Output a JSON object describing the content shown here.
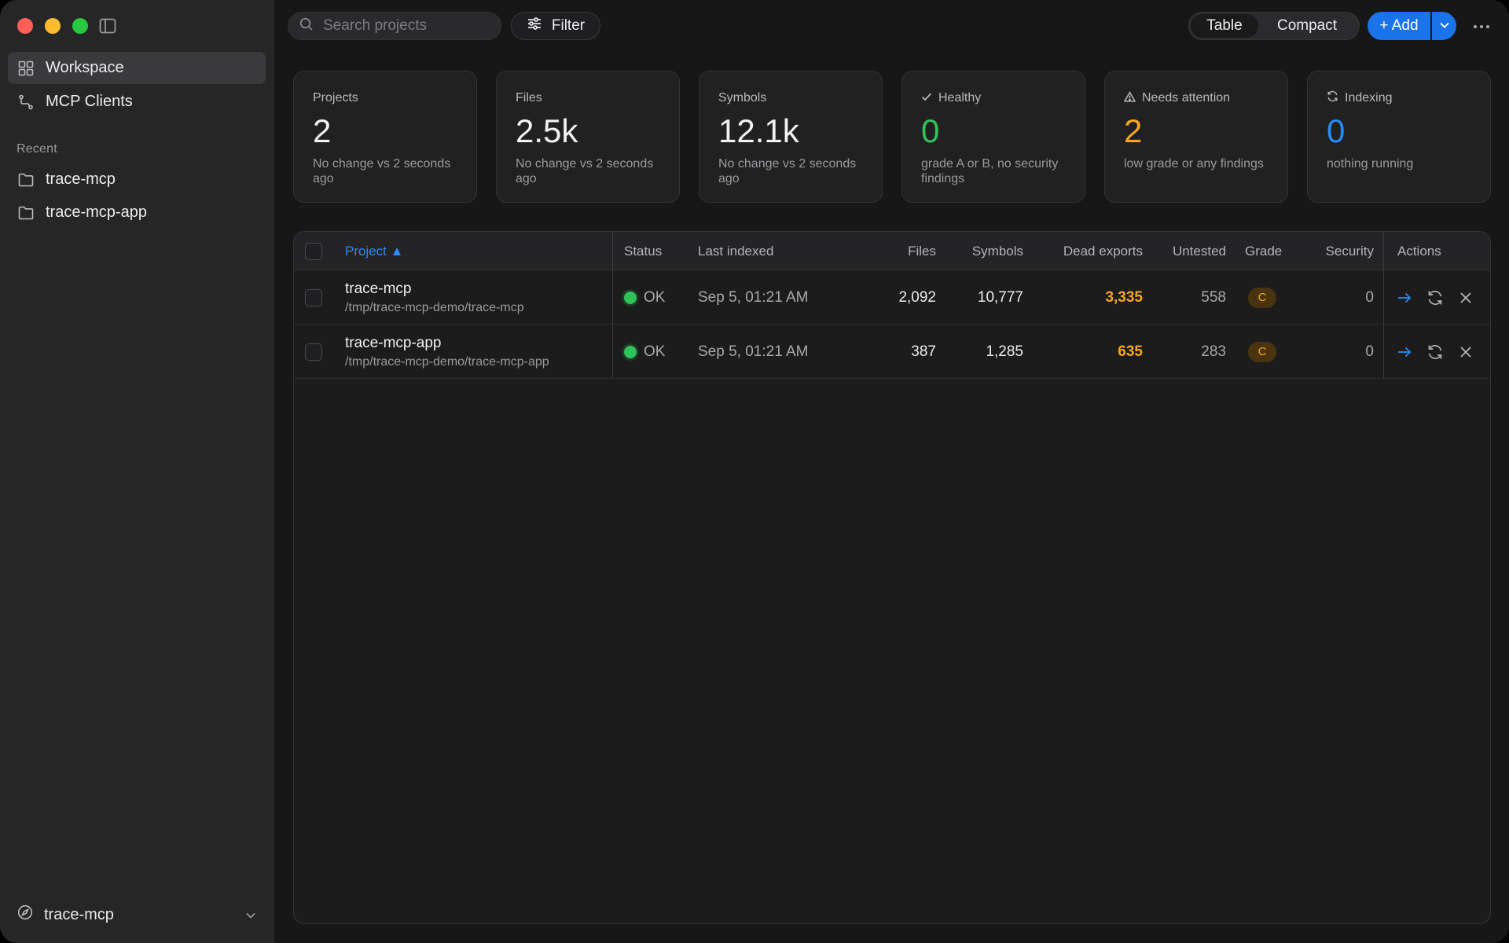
{
  "sidebar": {
    "nav": [
      {
        "label": "Workspace",
        "icon": "grid-icon"
      },
      {
        "label": "MCP Clients",
        "icon": "route-icon"
      }
    ],
    "recent_label": "Recent",
    "recent": [
      {
        "label": "trace-mcp",
        "icon": "folder-icon"
      },
      {
        "label": "trace-mcp-app",
        "icon": "folder-icon"
      }
    ],
    "footer_label": "trace-mcp"
  },
  "toolbar": {
    "search_placeholder": "Search projects",
    "filter_label": "Filter",
    "view_table": "Table",
    "view_compact": "Compact",
    "add_label": "+ Add"
  },
  "cards": [
    {
      "label": "Projects",
      "value": "2",
      "sub": "No change vs 2 seconds ago"
    },
    {
      "label": "Files",
      "value": "2.5k",
      "sub": "No change vs 2 seconds ago"
    },
    {
      "label": "Symbols",
      "value": "12.1k",
      "sub": "No change vs 2 seconds ago"
    },
    {
      "label": "Healthy",
      "value": "0",
      "sub": "grade A or B, no security findings",
      "icon": "check-icon"
    },
    {
      "label": "Needs attention",
      "value": "2",
      "sub": "low grade or any findings",
      "icon": "warning-icon"
    },
    {
      "label": "Indexing",
      "value": "0",
      "sub": "nothing running",
      "icon": "refresh-icon"
    }
  ],
  "table": {
    "headers": {
      "project": "Project ▲",
      "status": "Status",
      "last_indexed": "Last indexed",
      "files": "Files",
      "symbols": "Symbols",
      "dead_exports": "Dead exports",
      "untested": "Untested",
      "grade": "Grade",
      "security": "Security",
      "actions": "Actions"
    },
    "rows": [
      {
        "name": "trace-mcp",
        "path": "/tmp/trace-mcp-demo/trace-mcp",
        "status": "OK",
        "last_indexed": "Sep 5, 01:21 AM",
        "files": "2,092",
        "symbols": "10,777",
        "dead_exports": "3,335",
        "untested": "558",
        "grade": "C",
        "security": "0"
      },
      {
        "name": "trace-mcp-app",
        "path": "/tmp/trace-mcp-demo/trace-mcp-app",
        "status": "OK",
        "last_indexed": "Sep 5, 01:21 AM",
        "files": "387",
        "symbols": "1,285",
        "dead_exports": "635",
        "untested": "283",
        "grade": "C",
        "security": "0"
      }
    ]
  },
  "colors": {
    "accent": "#1a73e8",
    "ok": "#2fc15a",
    "warning": "#f5a524",
    "info": "#2a8af5"
  }
}
